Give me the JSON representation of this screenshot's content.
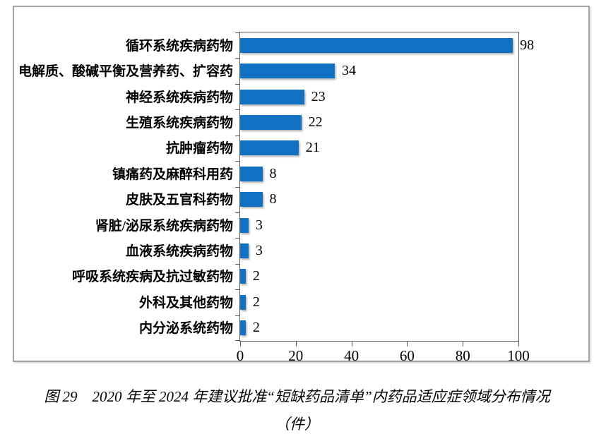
{
  "chart_data": {
    "type": "bar",
    "orientation": "horizontal",
    "title": "",
    "xlabel": "",
    "ylabel": "",
    "categories": [
      "循环系统疾病药物",
      "电解质、酸碱平衡及营养药、扩容药",
      "神经系统疾病药物",
      "生殖系统疾病药物",
      "抗肿瘤药物",
      "镇痛药及麻醉科用药",
      "皮肤及五官科药物",
      "肾脏/泌尿系统疾病药物",
      "血液系统疾病药物",
      "呼吸系统疾病及抗过敏药物",
      "外科及其他药物",
      "内分泌系统药物"
    ],
    "values": [
      98,
      34,
      23,
      22,
      21,
      8,
      8,
      3,
      3,
      2,
      2,
      2
    ],
    "xlim": [
      0,
      100
    ],
    "xticks": [
      0,
      20,
      40,
      60,
      80,
      100
    ],
    "grid": false,
    "legend": false,
    "data_labels_visible": true,
    "bar_color": "#1172c4"
  },
  "caption": {
    "line1": "图 29　2020 年至 2024 年建议批准“短缺药品清单”内药品适应症领域分布情况",
    "line2": "（件）"
  },
  "colors": {
    "bar": "#1172c4",
    "plot_border": "#595959",
    "frame_border": "#a2a2a2",
    "background": "#ffffff",
    "text": "#000000"
  }
}
